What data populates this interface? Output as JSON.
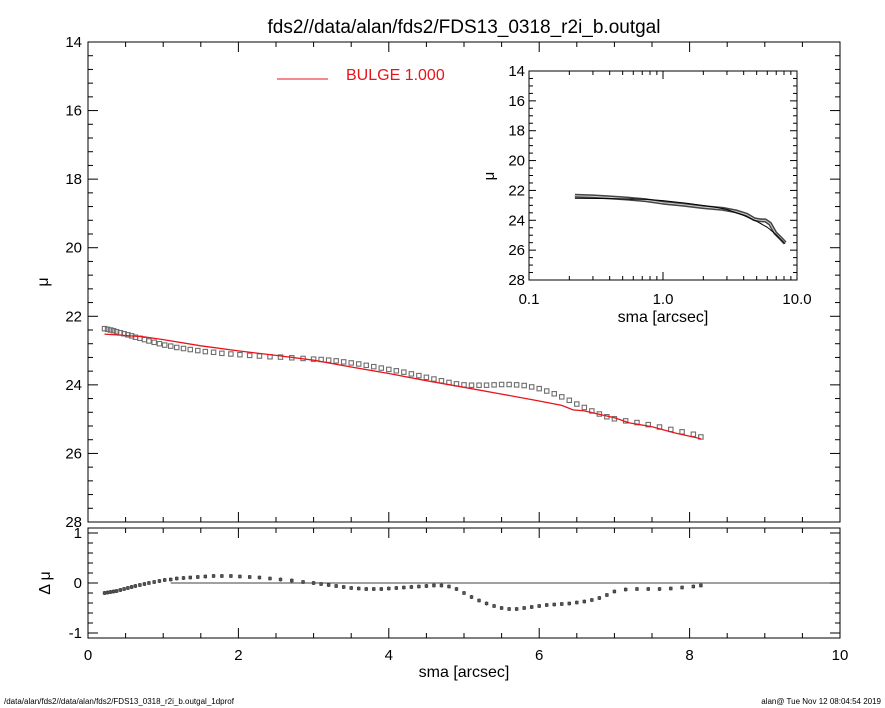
{
  "title": "fds2//data/alan/fds2/FDS13_0318_r2i_b.outgal",
  "footer": {
    "left": "/data/alan/fds2//data/alan/fds2/FDS13_0318_r2i_b.outgal_1dprof",
    "right": "alan@  Tue Nov 12 08:04:54 2019"
  },
  "colors": {
    "model": "#e8141b",
    "data": "#6e6e6e",
    "axes": "#000000"
  },
  "chart_data": [
    {
      "id": "main",
      "type": "scatter",
      "xlabel": "",
      "ylabel": "μ",
      "xlim": [
        0,
        10
      ],
      "ylim": [
        28,
        14
      ],
      "y_inverted": true,
      "yticks": [
        14,
        16,
        18,
        20,
        22,
        24,
        26,
        28
      ],
      "ytick_labels": [
        "14",
        "16",
        "18",
        "20",
        "22",
        "24",
        "26",
        "28"
      ],
      "legend": {
        "position": "top-center",
        "entries": [
          {
            "label": "BULGE  1.000",
            "color": "#e8141b"
          }
        ]
      },
      "series": [
        {
          "name": "data",
          "marker": "square",
          "x": [
            0.22,
            0.26,
            0.3,
            0.34,
            0.38,
            0.43,
            0.48,
            0.53,
            0.58,
            0.63,
            0.69,
            0.75,
            0.81,
            0.88,
            0.95,
            1.02,
            1.1,
            1.18,
            1.27,
            1.36,
            1.46,
            1.56,
            1.67,
            1.78,
            1.9,
            2.02,
            2.15,
            2.28,
            2.42,
            2.56,
            2.71,
            2.86,
            3.0,
            3.1,
            3.2,
            3.3,
            3.4,
            3.5,
            3.6,
            3.7,
            3.8,
            3.9,
            4.0,
            4.1,
            4.2,
            4.3,
            4.4,
            4.5,
            4.6,
            4.7,
            4.8,
            4.9,
            5.0,
            5.1,
            5.2,
            5.3,
            5.4,
            5.5,
            5.6,
            5.7,
            5.8,
            5.9,
            6.0,
            6.1,
            6.2,
            6.3,
            6.4,
            6.5,
            6.6,
            6.7,
            6.8,
            6.9,
            7.0,
            7.15,
            7.3,
            7.45,
            7.6,
            7.75,
            7.9,
            8.05,
            8.15
          ],
          "y": [
            22.36,
            22.38,
            22.4,
            22.42,
            22.45,
            22.48,
            22.51,
            22.54,
            22.57,
            22.61,
            22.64,
            22.68,
            22.72,
            22.76,
            22.8,
            22.84,
            22.87,
            22.91,
            22.94,
            22.97,
            23.0,
            23.03,
            23.05,
            23.08,
            23.1,
            23.12,
            23.14,
            23.16,
            23.18,
            23.19,
            23.21,
            23.23,
            23.25,
            23.26,
            23.28,
            23.3,
            23.33,
            23.36,
            23.39,
            23.43,
            23.47,
            23.51,
            23.55,
            23.59,
            23.63,
            23.68,
            23.73,
            23.78,
            23.83,
            23.88,
            23.93,
            23.97,
            24.0,
            24.01,
            24.01,
            24.01,
            24.0,
            23.99,
            23.99,
            24.0,
            24.02,
            24.06,
            24.11,
            24.18,
            24.26,
            24.35,
            24.45,
            24.56,
            24.66,
            24.76,
            24.85,
            24.93,
            24.99,
            25.05,
            25.1,
            25.16,
            25.23,
            25.3,
            25.37,
            25.44,
            25.52
          ]
        },
        {
          "name": "model",
          "marker": "line",
          "x": [
            0.22,
            0.5,
            0.75,
            1.0,
            1.5,
            2.0,
            2.5,
            3.0,
            3.5,
            4.0,
            4.5,
            5.0,
            5.5,
            6.0,
            6.3,
            6.45,
            6.6,
            7.0,
            7.2,
            7.5,
            7.8,
            8.15
          ],
          "y": [
            22.52,
            22.56,
            22.6,
            22.68,
            22.86,
            23.01,
            23.14,
            23.28,
            23.48,
            23.67,
            23.88,
            24.07,
            24.27,
            24.47,
            24.6,
            24.73,
            24.76,
            24.96,
            25.11,
            25.22,
            25.4,
            25.57
          ]
        }
      ]
    },
    {
      "id": "inset",
      "type": "line",
      "xlabel": "sma [arcsec]",
      "ylabel": "μ",
      "xscale": "log",
      "xlim": [
        0.1,
        10
      ],
      "xticks": [
        0.1,
        1,
        10
      ],
      "xtick_labels": [
        "0.1",
        "1.0",
        "10.0"
      ],
      "ylim": [
        28,
        14
      ],
      "y_inverted": true,
      "yticks": [
        14,
        16,
        18,
        20,
        22,
        24,
        26,
        28
      ],
      "ytick_labels": [
        "14",
        "16",
        "18",
        "20",
        "22",
        "24",
        "26",
        "28"
      ],
      "series": [
        {
          "name": "data",
          "x": [
            0.22,
            0.3,
            0.4,
            0.55,
            0.75,
            1.0,
            1.4,
            2.0,
            2.8,
            3.5,
            4.2,
            4.8,
            5.3,
            5.8,
            6.3,
            6.9,
            7.5,
            8.15
          ],
          "y": [
            22.36,
            22.4,
            22.47,
            22.55,
            22.66,
            22.82,
            22.95,
            23.12,
            23.24,
            23.4,
            23.62,
            23.93,
            24.0,
            24.01,
            24.23,
            24.86,
            25.18,
            25.52
          ]
        },
        {
          "name": "model",
          "x": [
            0.22,
            0.4,
            0.75,
            1.0,
            1.5,
            2.0,
            2.5,
            3.0,
            4.0,
            5.0,
            6.0,
            7.0,
            8.15
          ],
          "y": [
            22.52,
            22.55,
            22.6,
            22.68,
            22.86,
            23.01,
            23.14,
            23.28,
            23.67,
            24.07,
            24.47,
            24.96,
            25.57
          ]
        }
      ]
    },
    {
      "id": "residual",
      "type": "scatter",
      "xlabel": "sma [arcsec]",
      "ylabel": "Δ μ",
      "xlim": [
        0,
        10
      ],
      "xticks": [
        0,
        2,
        4,
        6,
        8,
        10
      ],
      "xtick_labels": [
        "0",
        "2",
        "4",
        "6",
        "8",
        "10"
      ],
      "ylim": [
        -1.1,
        1.1
      ],
      "yticks": [
        -1,
        0,
        1
      ],
      "ytick_labels": [
        "-1",
        "0",
        "1"
      ],
      "reference_line": 0,
      "series": [
        {
          "name": "residual",
          "marker": "errorbar",
          "x": [
            0.22,
            0.26,
            0.3,
            0.34,
            0.38,
            0.43,
            0.48,
            0.53,
            0.58,
            0.63,
            0.69,
            0.75,
            0.81,
            0.88,
            0.95,
            1.02,
            1.1,
            1.18,
            1.27,
            1.36,
            1.46,
            1.56,
            1.67,
            1.78,
            1.9,
            2.02,
            2.15,
            2.28,
            2.42,
            2.56,
            2.71,
            2.86,
            3.0,
            3.1,
            3.2,
            3.3,
            3.4,
            3.5,
            3.6,
            3.7,
            3.8,
            3.9,
            4.0,
            4.1,
            4.2,
            4.3,
            4.4,
            4.5,
            4.6,
            4.7,
            4.8,
            4.9,
            5.0,
            5.1,
            5.2,
            5.3,
            5.4,
            5.5,
            5.6,
            5.7,
            5.8,
            5.9,
            6.0,
            6.1,
            6.2,
            6.3,
            6.4,
            6.5,
            6.6,
            6.7,
            6.8,
            6.9,
            7.0,
            7.15,
            7.3,
            7.45,
            7.6,
            7.75,
            7.9,
            8.05,
            8.15
          ],
          "y": [
            -0.2,
            -0.19,
            -0.18,
            -0.17,
            -0.16,
            -0.14,
            -0.12,
            -0.1,
            -0.08,
            -0.06,
            -0.04,
            -0.02,
            0.0,
            0.02,
            0.04,
            0.06,
            0.07,
            0.09,
            0.1,
            0.11,
            0.12,
            0.13,
            0.14,
            0.14,
            0.14,
            0.13,
            0.12,
            0.11,
            0.09,
            0.07,
            0.05,
            0.02,
            0.0,
            -0.02,
            -0.04,
            -0.06,
            -0.08,
            -0.1,
            -0.11,
            -0.12,
            -0.12,
            -0.12,
            -0.11,
            -0.1,
            -0.09,
            -0.08,
            -0.07,
            -0.06,
            -0.05,
            -0.05,
            -0.07,
            -0.12,
            -0.2,
            -0.28,
            -0.35,
            -0.41,
            -0.46,
            -0.5,
            -0.52,
            -0.52,
            -0.5,
            -0.48,
            -0.46,
            -0.44,
            -0.43,
            -0.42,
            -0.41,
            -0.39,
            -0.37,
            -0.34,
            -0.3,
            -0.24,
            -0.17,
            -0.13,
            -0.12,
            -0.12,
            -0.12,
            -0.11,
            -0.09,
            -0.07,
            -0.05
          ],
          "err": 0.04
        }
      ]
    }
  ]
}
